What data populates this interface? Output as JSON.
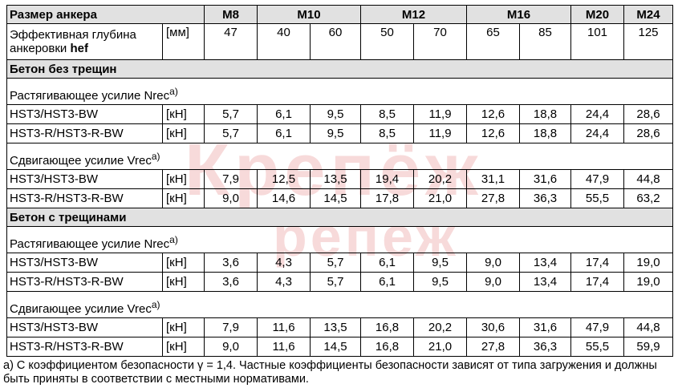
{
  "watermark": {
    "line1": "Крепёж",
    "line2": "репеж"
  },
  "header": {
    "label": "Размер анкера",
    "sizes": [
      "M8",
      "M10",
      "M12",
      "M16",
      "M20",
      "M24"
    ]
  },
  "depth_row": {
    "label_part1": "Эффективная глубина анкеровки ",
    "label_bold": "hef",
    "unit": "[мм]",
    "values": [
      "47",
      "40",
      "60",
      "50",
      "70",
      "65",
      "85",
      "101",
      "125"
    ]
  },
  "sections": [
    {
      "title": "Бетон без трещин",
      "groups": [
        {
          "title": "Растягивающее усилие Nrec",
          "sup": "a)",
          "rows": [
            {
              "label": "HST3/HST3-BW",
              "unit": "[кН]",
              "values": [
                "5,7",
                "6,1",
                "9,5",
                "8,5",
                "11,9",
                "12,6",
                "18,8",
                "24,4",
                "28,6"
              ]
            },
            {
              "label": "HST3-R/HST3-R-BW",
              "unit": "[кН]",
              "values": [
                "5,7",
                "6,1",
                "9,5",
                "8,5",
                "11,9",
                "12,6",
                "18,8",
                "24,4",
                "28,6"
              ]
            }
          ]
        },
        {
          "title": "Сдвигающее усилие Vrec",
          "sup": "a)",
          "rows": [
            {
              "label": "HST3/HST3-BW",
              "unit": "[кН]",
              "values": [
                "7,9",
                "12,5",
                "13,5",
                "19,4",
                "20,2",
                "31,1",
                "31,6",
                "47,9",
                "44,8"
              ]
            },
            {
              "label": "HST3-R/HST3-R-BW",
              "unit": "[кН]",
              "values": [
                "9,0",
                "14,6",
                "14,5",
                "17,8",
                "21,0",
                "27,8",
                "36,3",
                "55,5",
                "63,2"
              ]
            }
          ]
        }
      ]
    },
    {
      "title": "Бетон с трещинами",
      "groups": [
        {
          "title": "Растягивающее усилие Nrec",
          "sup": "a)",
          "rows": [
            {
              "label": "HST3/HST3-BW",
              "unit": "[кН]",
              "values": [
                "3,6",
                "4,3",
                "5,7",
                "6,1",
                "9,5",
                "9,0",
                "13,4",
                "17,4",
                "19,0"
              ]
            },
            {
              "label": "HST3-R/HST3-R-BW",
              "unit": "[кН]",
              "values": [
                "3,6",
                "4,3",
                "5,7",
                "6,1",
                "9,5",
                "9,0",
                "13,4",
                "17,4",
                "19,0"
              ]
            }
          ]
        },
        {
          "title": "Сдвигающее усилие Vrec",
          "sup": "a)",
          "rows": [
            {
              "label": "HST3/HST3-BW",
              "unit": "[кН]",
              "values": [
                "7,9",
                "11,6",
                "13,5",
                "16,8",
                "20,2",
                "30,6",
                "31,6",
                "47,9",
                "44,8"
              ]
            },
            {
              "label": "HST3-R/HST3-R-BW",
              "unit": "[кН]",
              "values": [
                "9,0",
                "11,6",
                "14,5",
                "16,8",
                "21,0",
                "27,8",
                "36,3",
                "55,5",
                "59,9"
              ]
            }
          ]
        }
      ]
    }
  ],
  "footnote": "a) С коэффициентом безопасности γ = 1,4. Частные коэффициенты безопасности зависят от типа загружения и должны быть приняты в соответствии с местными нормативами."
}
